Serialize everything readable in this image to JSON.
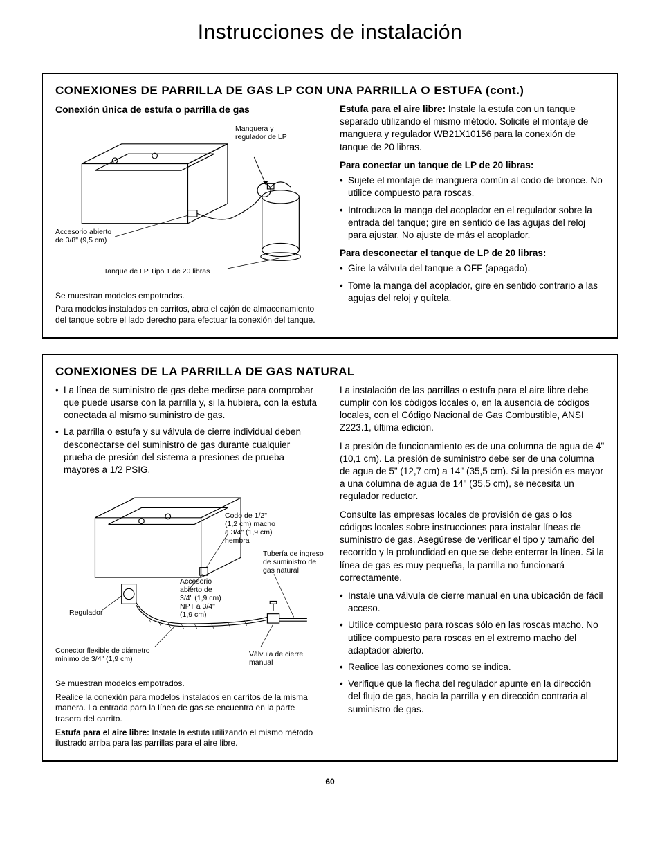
{
  "page": {
    "title": "Instrucciones de instalación",
    "number": "60"
  },
  "section1": {
    "title": "CONEXIONES DE PARRILLA DE GAS LP CON UNA PARRILLA O ESTUFA (cont.)",
    "left": {
      "subhead": "Conexión única de estufa o parrilla de gas",
      "diagram": {
        "label_hose": "Manguera y\nregulador de LP",
        "label_flare": "Accesorio abierto\nde 3/8\" (9,5 cm)",
        "label_tank": "Tanque de LP Tipo 1 de 20 libras"
      },
      "caption1": "Se muestran modelos empotrados.",
      "caption2": "Para modelos instalados en carritos, abra el cajón de almacenamiento del tanque sobre el lado derecho para efectuar la conexión del tanque."
    },
    "right": {
      "intro_runin": "Estufa para el aire libre:",
      "intro": " Instale la estufa con un tanque separado utilizando el mismo método. Solicite el montaje de manguera y regulador WB21X10156 para la conexión de tanque de 20 libras.",
      "connect_head": "Para conectar un tanque de LP de 20 libras:",
      "connect_items": [
        "Sujete el montaje de manguera común al codo de bronce. No utilice compuesto para roscas.",
        "Introduzca la manga del acoplador en el regulador sobre la entrada del tanque; gire en sentido de las agujas del reloj para ajustar.  No ajuste de más el acoplador."
      ],
      "disconnect_head": "Para desconectar el tanque de LP de 20 libras:",
      "disconnect_items": [
        "Gire la válvula del tanque a OFF (apagado).",
        "Tome la manga del acoplador, gire en sentido contrario a las agujas del reloj y quítela."
      ]
    }
  },
  "section2": {
    "title": "CONEXIONES DE LA PARRILLA DE GAS NATURAL",
    "left": {
      "bullets_top": [
        "La línea de suministro de gas debe medirse para comprobar que puede usarse con la parrilla y, si la hubiera, con la estufa conectada al mismo suministro de gas.",
        "La parrilla o estufa y su válvula de cierre individual deben desconectarse del suministro de gas durante cualquier prueba de presión del sistema a presiones de prueba mayores a 1/2 PSIG."
      ],
      "diagram": {
        "label_elbow": "Codo de 1/2\"\n(1,2 cm) macho\na 3/4\" (1,9 cm)\nhembra",
        "label_supply": "Tubería de ingreso\nde suministro de\ngas natural",
        "label_flare": "Accesorio\nabierto de\n3/4\" (1,9 cm)\nNPT a 3/4\"\n(1,9 cm)",
        "label_regulator": "Regulador",
        "label_connector": "Conector flexible de diámetro\nmínimo de 3/4\" (1,9 cm)",
        "label_valve": "Válvula de cierre\nmanual"
      },
      "caption1": "Se muestran modelos empotrados.",
      "caption2": "Realice la conexión para modelos instalados en carritos de la misma manera. La entrada para la línea de gas se encuentra en la parte trasera del carrito.",
      "caption3_runin": "Estufa para el aire libre:",
      "caption3": " Instale la estufa utilizando el mismo método ilustrado arriba para las parrillas para el aire libre."
    },
    "right": {
      "para1": "La instalación de las parrillas o estufa para el aire libre debe cumplir con los códigos locales o, en la ausencia de códigos locales, con el Código Nacional de Gas Combustible, ANSI Z223.1, última edición.",
      "para2": "La presión de funcionamiento es de una columna de agua de 4\" (10,1 cm). La presión de suministro debe ser de una columna de agua de 5\" (12,7 cm) a 14\" (35,5 cm). Si la presión es mayor a una columna de agua de 14\" (35,5 cm), se necesita un regulador reductor.",
      "para3": "Consulte las empresas locales de provisión de gas o los códigos locales sobre instrucciones para instalar líneas de suministro de gas. Asegúrese de verificar el tipo y tamaño del recorrido y la profundidad en que se debe enterrar la línea. Si la línea de gas es muy pequeña, la parrilla no funcionará correctamente.",
      "bullets": [
        "Instale una válvula de cierre manual en una ubicación de fácil acceso.",
        "Utilice compuesto para roscas sólo en las roscas macho. No utilice compuesto para roscas en el extremo macho del adaptador abierto.",
        "Realice las conexiones como se indica.",
        "Verifique que la flecha del regulador apunte en la dirección del flujo de gas, hacia la parrilla y en dirección contraria al suministro de gas."
      ]
    }
  }
}
